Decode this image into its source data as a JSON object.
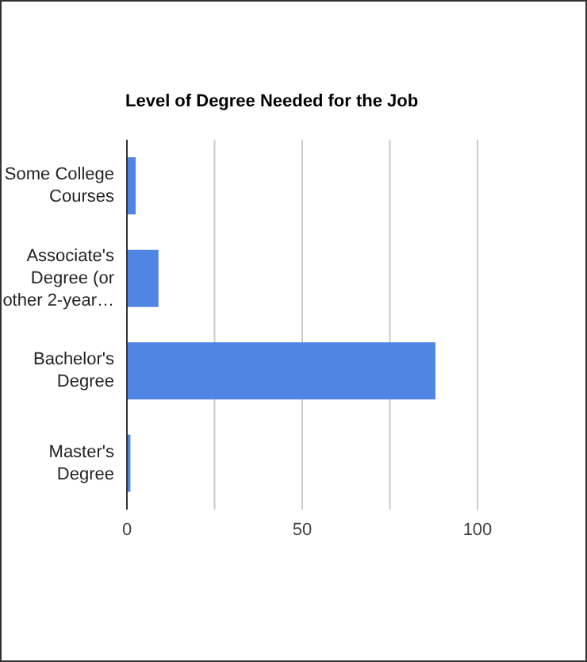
{
  "chart_data": {
    "type": "bar",
    "orientation": "horizontal",
    "title": "Level of Degree Needed for the Job",
    "categories": [
      "Some College Courses",
      "Associate's Degree (or other 2-year…",
      "Bachelor's Degree",
      "Master's Degree"
    ],
    "values": [
      2.5,
      9,
      88,
      1
    ],
    "color": "#5085e4",
    "xlim": [
      0,
      100
    ],
    "xticks": [
      0,
      {
        "value": 25,
        "label": null
      },
      50,
      {
        "value": 75,
        "label": null
      },
      100
    ],
    "grid": "x"
  }
}
